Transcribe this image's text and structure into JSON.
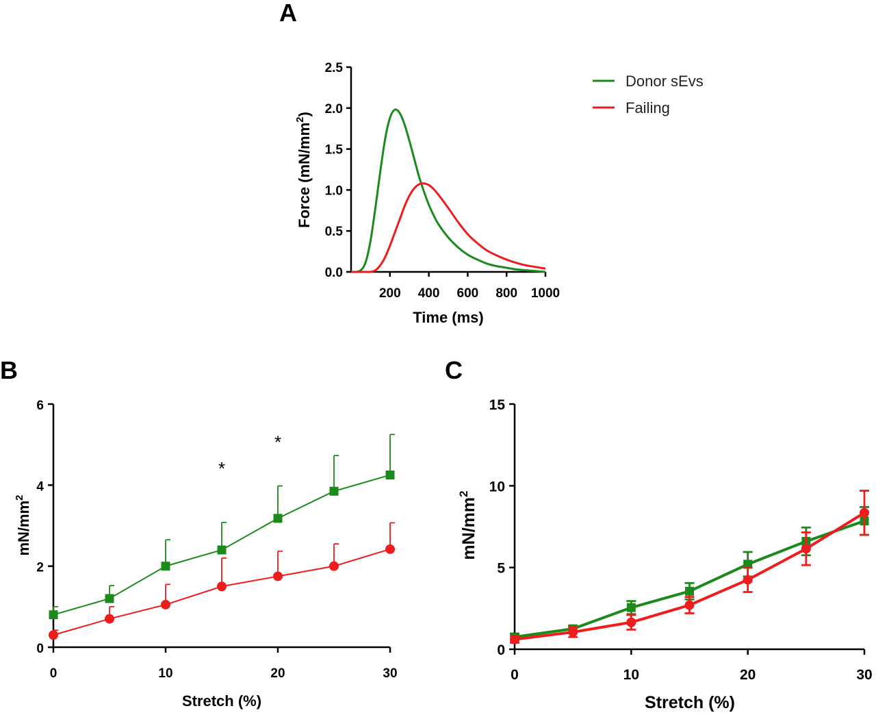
{
  "colors": {
    "donor": "#1b8a1b",
    "failing": "#ee1c1c"
  },
  "legend": [
    {
      "label": "Donor sEvs",
      "color": "#1b8a1b"
    },
    {
      "label": "Failing",
      "color": "#ee1c1c"
    }
  ],
  "panels": {
    "a": "A",
    "b": "B",
    "c": "C"
  },
  "chart_data": [
    {
      "panel": "A",
      "type": "line",
      "xlabel": "Time (ms)",
      "ylabel": "Force (mN/mm",
      "ylabel_sup": "2",
      "ylabel_tail": ")",
      "xlim": [
        0,
        1000
      ],
      "ylim": [
        0,
        2.5
      ],
      "xticks": [
        200,
        400,
        600,
        800,
        1000
      ],
      "yticks": [
        0.0,
        0.5,
        1.0,
        1.5,
        2.0,
        2.5
      ],
      "ytick_labels": [
        "0.0",
        "0.5",
        "1.0",
        "1.5",
        "2.0",
        "2.5"
      ],
      "series": [
        {
          "name": "Donor sEvs",
          "x": [
            0,
            25,
            50,
            75,
            100,
            125,
            150,
            175,
            200,
            225,
            250,
            275,
            300,
            325,
            350,
            375,
            400,
            425,
            450,
            500,
            550,
            600,
            650,
            700,
            750,
            800,
            850,
            900,
            950,
            1000
          ],
          "y": [
            0,
            0,
            0.02,
            0.12,
            0.38,
            0.78,
            1.22,
            1.62,
            1.88,
            1.98,
            1.94,
            1.8,
            1.6,
            1.38,
            1.16,
            0.98,
            0.82,
            0.69,
            0.58,
            0.42,
            0.3,
            0.21,
            0.15,
            0.1,
            0.07,
            0.05,
            0.03,
            0.02,
            0.01,
            0.0
          ]
        },
        {
          "name": "Failing",
          "x": [
            0,
            50,
            75,
            100,
            125,
            150,
            175,
            200,
            225,
            250,
            275,
            300,
            325,
            350,
            375,
            400,
            425,
            450,
            500,
            550,
            600,
            650,
            700,
            750,
            800,
            850,
            900,
            950,
            1000
          ],
          "y": [
            0,
            0,
            0.0,
            0.0,
            0.02,
            0.08,
            0.18,
            0.32,
            0.48,
            0.64,
            0.8,
            0.93,
            1.02,
            1.07,
            1.08,
            1.06,
            1.01,
            0.94,
            0.78,
            0.61,
            0.46,
            0.35,
            0.26,
            0.2,
            0.15,
            0.11,
            0.08,
            0.06,
            0.04
          ]
        }
      ]
    },
    {
      "panel": "B",
      "type": "line",
      "xlabel": "Stretch (%)",
      "ylabel": "mN/mm",
      "ylabel_sup": "2",
      "xlim": [
        0,
        30
      ],
      "ylim": [
        0,
        6
      ],
      "xticks": [
        0,
        10,
        20,
        30
      ],
      "yticks": [
        0,
        2,
        4,
        6
      ],
      "x": [
        0,
        5,
        10,
        15,
        20,
        25,
        30
      ],
      "series": [
        {
          "name": "Donor sEvs",
          "marker": "square",
          "values": [
            0.8,
            1.2,
            2.0,
            2.4,
            3.18,
            3.85,
            4.25
          ],
          "err": [
            0.2,
            0.32,
            0.65,
            0.68,
            0.8,
            0.88,
            1.0
          ]
        },
        {
          "name": "Failing",
          "marker": "circle",
          "values": [
            0.3,
            0.7,
            1.05,
            1.5,
            1.75,
            2.0,
            2.42
          ],
          "err": [
            0.12,
            0.3,
            0.5,
            0.7,
            0.62,
            0.55,
            0.65
          ]
        }
      ],
      "annotations": [
        {
          "x": 15,
          "y": 4.5,
          "text": "*"
        },
        {
          "x": 20,
          "y": 5.15,
          "text": "*"
        }
      ]
    },
    {
      "panel": "C",
      "type": "line",
      "xlabel": "Stretch (%)",
      "ylabel": "mN/mm",
      "ylabel_sup": "2",
      "xlim": [
        0,
        30
      ],
      "ylim": [
        0,
        15
      ],
      "xticks": [
        0,
        10,
        20,
        30
      ],
      "yticks": [
        0,
        5,
        10,
        15
      ],
      "x": [
        0,
        5,
        10,
        15,
        20,
        25,
        30
      ],
      "series": [
        {
          "name": "Donor sEvs",
          "marker": "square",
          "values": [
            0.75,
            1.25,
            2.55,
            3.55,
            5.2,
            6.6,
            7.85
          ],
          "err": [
            0.2,
            0.2,
            0.4,
            0.5,
            0.75,
            0.85,
            0.85
          ]
        },
        {
          "name": "Failing",
          "marker": "circle",
          "values": [
            0.6,
            1.05,
            1.65,
            2.7,
            4.25,
            6.15,
            8.35
          ],
          "err": [
            0.2,
            0.3,
            0.45,
            0.5,
            0.75,
            1.0,
            1.35
          ]
        }
      ]
    }
  ]
}
